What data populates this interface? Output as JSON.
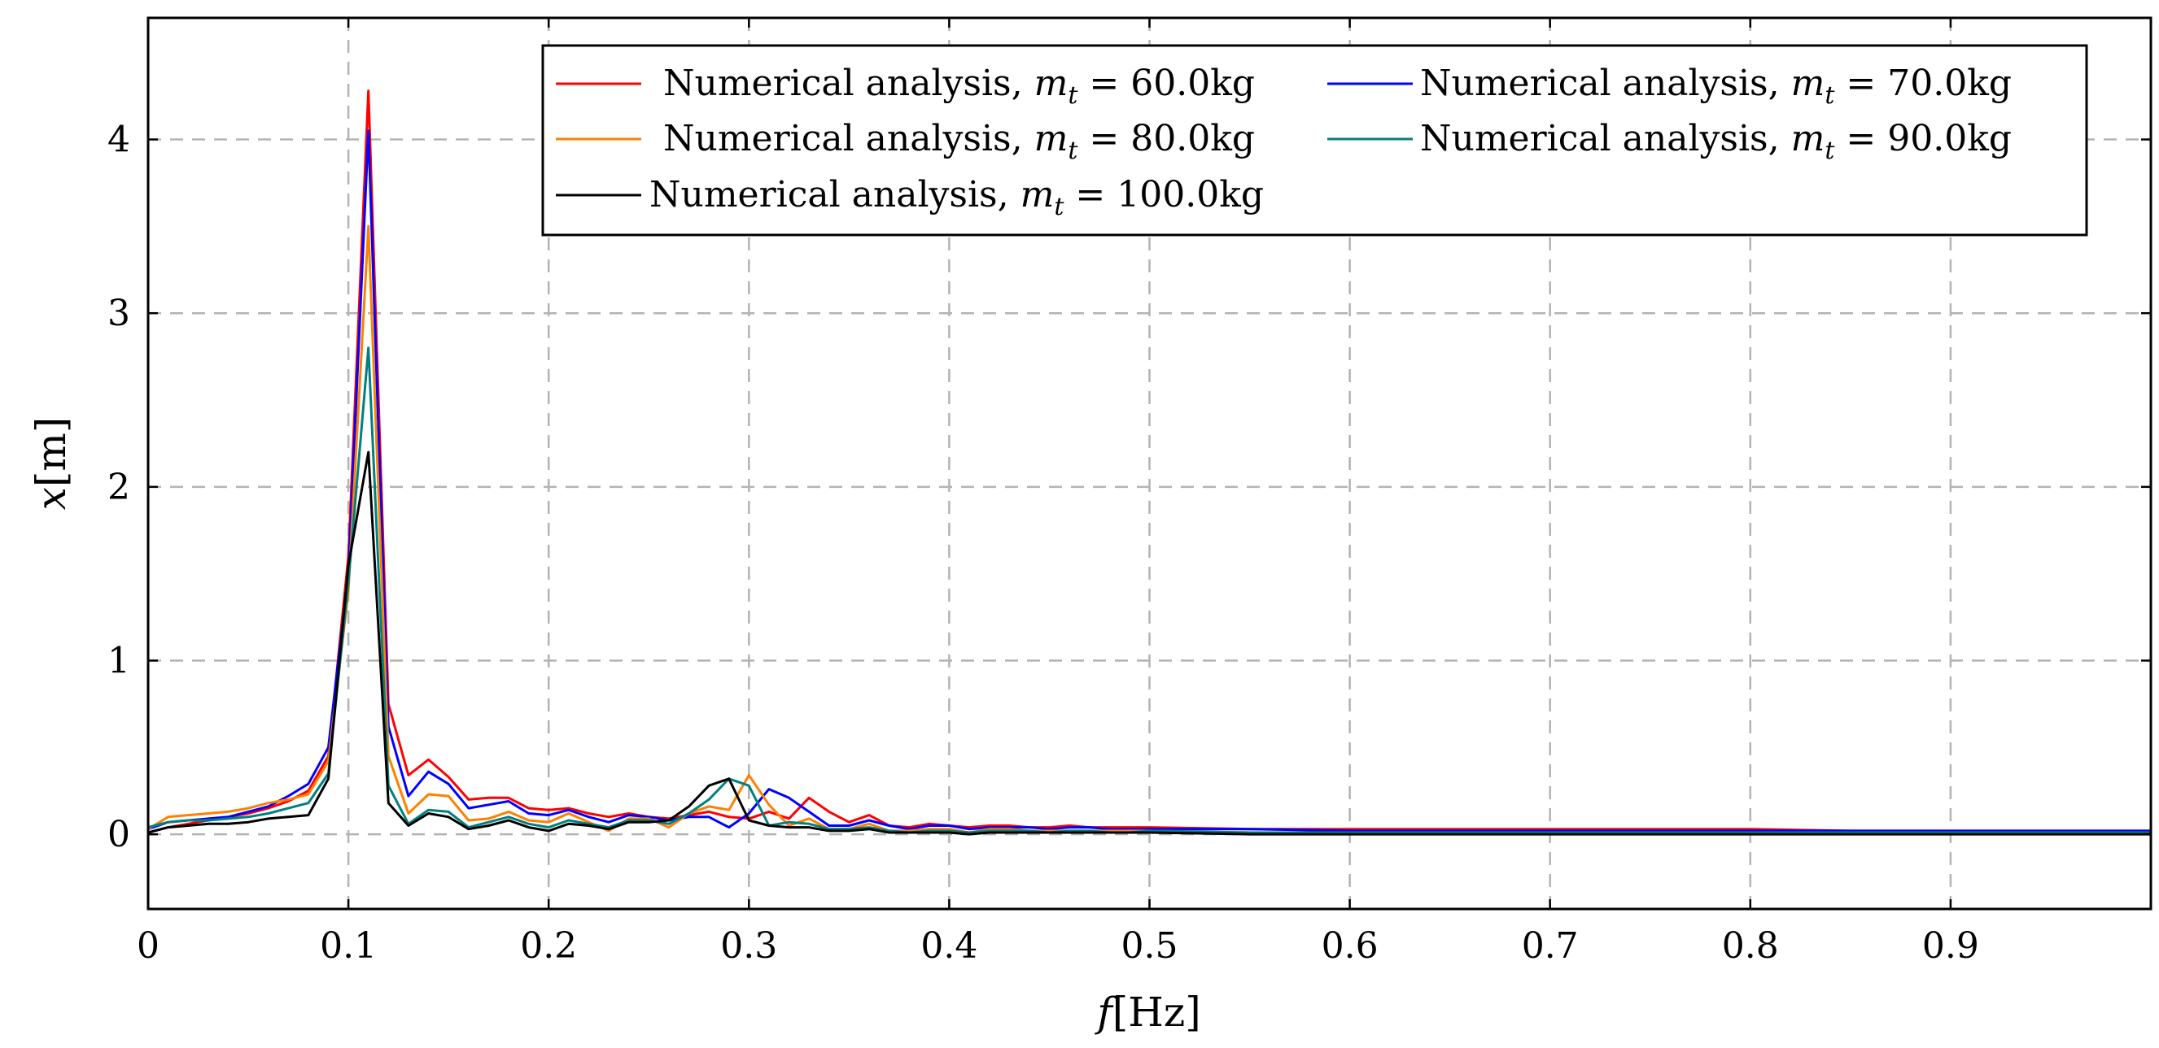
{
  "chart_data": {
    "type": "line",
    "title": "",
    "xlabel": "f",
    "xlabel_unit": "[Hz]",
    "ylabel": "x",
    "ylabel_unit": "[m]",
    "xlim": [
      0,
      1.0
    ],
    "ylim": [
      -0.43,
      4.7
    ],
    "grid": true,
    "legend_position": "top-right",
    "x_ticks": [
      0,
      0.1,
      0.2,
      0.3,
      0.4,
      0.5,
      0.6,
      0.7,
      0.8,
      0.9
    ],
    "x_tick_labels": [
      "0",
      "0.1",
      "0.2",
      "0.3",
      "0.4",
      "0.5",
      "0.6",
      "0.7",
      "0.8",
      "0.9"
    ],
    "y_ticks": [
      0,
      1,
      2,
      3,
      4
    ],
    "y_tick_labels": [
      "0",
      "1",
      "2",
      "3",
      "4"
    ],
    "x": [
      0,
      0.01,
      0.02,
      0.03,
      0.04,
      0.05,
      0.06,
      0.07,
      0.08,
      0.09,
      0.1,
      0.11,
      0.12,
      0.13,
      0.14,
      0.15,
      0.16,
      0.17,
      0.18,
      0.19,
      0.2,
      0.21,
      0.22,
      0.23,
      0.24,
      0.25,
      0.26,
      0.27,
      0.28,
      0.29,
      0.3,
      0.31,
      0.32,
      0.33,
      0.34,
      0.35,
      0.36,
      0.37,
      0.38,
      0.39,
      0.4,
      0.41,
      0.42,
      0.43,
      0.44,
      0.45,
      0.46,
      0.47,
      0.48,
      0.49,
      0.5,
      0.55,
      0.6,
      0.65,
      0.7,
      0.75,
      0.8,
      0.85,
      0.9,
      0.95,
      1.0
    ],
    "series": [
      {
        "name": "Numerical analysis",
        "mass": "60.0",
        "color": "#ff0000",
        "values": [
          0.01,
          0.04,
          0.06,
          0.08,
          0.1,
          0.12,
          0.15,
          0.19,
          0.25,
          0.45,
          1.6,
          4.28,
          0.75,
          0.34,
          0.43,
          0.33,
          0.2,
          0.21,
          0.21,
          0.15,
          0.14,
          0.15,
          0.12,
          0.1,
          0.12,
          0.1,
          0.09,
          0.11,
          0.13,
          0.1,
          0.09,
          0.13,
          0.09,
          0.21,
          0.13,
          0.07,
          0.11,
          0.05,
          0.04,
          0.06,
          0.05,
          0.04,
          0.05,
          0.05,
          0.04,
          0.04,
          0.05,
          0.04,
          0.04,
          0.04,
          0.04,
          0.03,
          0.03,
          0.03,
          0.03,
          0.03,
          0.03,
          0.02,
          0.02,
          0.02,
          0.02
        ]
      },
      {
        "name": "Numerical analysis",
        "mass": "70.0",
        "color": "#0000ff",
        "values": [
          0.03,
          0.07,
          0.08,
          0.09,
          0.1,
          0.13,
          0.16,
          0.22,
          0.29,
          0.5,
          1.5,
          4.05,
          0.62,
          0.22,
          0.36,
          0.29,
          0.15,
          0.17,
          0.19,
          0.12,
          0.11,
          0.14,
          0.1,
          0.07,
          0.11,
          0.1,
          0.08,
          0.1,
          0.1,
          0.04,
          0.12,
          0.26,
          0.21,
          0.13,
          0.05,
          0.05,
          0.08,
          0.05,
          0.03,
          0.05,
          0.05,
          0.03,
          0.04,
          0.04,
          0.04,
          0.03,
          0.04,
          0.04,
          0.03,
          0.03,
          0.03,
          0.03,
          0.02,
          0.02,
          0.02,
          0.02,
          0.02,
          0.02,
          0.02,
          0.02,
          0.02
        ]
      },
      {
        "name": "Numerical analysis",
        "mass": "80.0",
        "color": "#ff8000",
        "values": [
          0.03,
          0.1,
          0.11,
          0.12,
          0.13,
          0.15,
          0.18,
          0.2,
          0.23,
          0.42,
          1.4,
          3.5,
          0.45,
          0.12,
          0.23,
          0.22,
          0.08,
          0.09,
          0.13,
          0.08,
          0.07,
          0.12,
          0.07,
          0.02,
          0.09,
          0.09,
          0.04,
          0.12,
          0.16,
          0.14,
          0.34,
          0.17,
          0.05,
          0.09,
          0.03,
          0.03,
          0.06,
          0.02,
          0.02,
          0.03,
          0.03,
          0.01,
          0.03,
          0.03,
          0.02,
          0.02,
          0.02,
          0.02,
          0.02,
          0.02,
          0.02,
          0.01,
          0.01,
          0.01,
          0.01,
          0.01,
          0.01,
          0.01,
          0.01,
          0.01,
          0.01
        ]
      },
      {
        "name": "Numerical analysis",
        "mass": "90.0",
        "color": "#008080",
        "values": [
          0.04,
          0.07,
          0.08,
          0.08,
          0.09,
          0.1,
          0.12,
          0.15,
          0.18,
          0.35,
          1.45,
          2.8,
          0.28,
          0.06,
          0.14,
          0.13,
          0.04,
          0.07,
          0.1,
          0.06,
          0.04,
          0.08,
          0.06,
          0.04,
          0.08,
          0.08,
          0.06,
          0.12,
          0.2,
          0.32,
          0.28,
          0.05,
          0.07,
          0.06,
          0.03,
          0.03,
          0.04,
          0.02,
          0.01,
          0.02,
          0.02,
          0.01,
          0.02,
          0.02,
          0.02,
          0.01,
          0.02,
          0.02,
          0.01,
          0.01,
          0.02,
          0.01,
          0.01,
          0.01,
          0.01,
          0.01,
          0.01,
          0.01,
          0.01,
          0.01,
          0.01
        ]
      },
      {
        "name": "Numerical analysis",
        "mass": "100.0",
        "color": "#000000",
        "values": [
          0.01,
          0.04,
          0.05,
          0.06,
          0.06,
          0.07,
          0.09,
          0.1,
          0.11,
          0.32,
          1.55,
          2.2,
          0.18,
          0.05,
          0.12,
          0.1,
          0.03,
          0.05,
          0.08,
          0.04,
          0.02,
          0.06,
          0.05,
          0.03,
          0.07,
          0.07,
          0.08,
          0.16,
          0.28,
          0.32,
          0.08,
          0.05,
          0.04,
          0.04,
          0.02,
          0.02,
          0.03,
          0.01,
          0.01,
          0.01,
          0.01,
          0.0,
          0.01,
          0.01,
          0.01,
          0.01,
          0.01,
          0.01,
          0.01,
          0.01,
          0.01,
          0.0,
          0.0,
          0.0,
          0.0,
          0.0,
          0.0,
          0.0,
          0.0,
          0.0,
          0.0
        ]
      }
    ],
    "legend": {
      "entries": [
        {
          "prefix": "Numerical analysis, ",
          "var": "m",
          "sub": "t",
          "eq": " = ",
          "mass": "60.0",
          "unit": "kg"
        },
        {
          "prefix": "Numerical analysis, ",
          "var": "m",
          "sub": "t",
          "eq": " = ",
          "mass": "70.0",
          "unit": "kg"
        },
        {
          "prefix": "Numerical analysis, ",
          "var": "m",
          "sub": "t",
          "eq": " = ",
          "mass": "80.0",
          "unit": "kg"
        },
        {
          "prefix": "Numerical analysis, ",
          "var": "m",
          "sub": "t",
          "eq": " = ",
          "mass": "90.0",
          "unit": "kg"
        },
        {
          "prefix": "Numerical analysis, ",
          "var": "m",
          "sub": "t",
          "eq": " = ",
          "mass": "100.0",
          "unit": "kg"
        }
      ]
    }
  }
}
